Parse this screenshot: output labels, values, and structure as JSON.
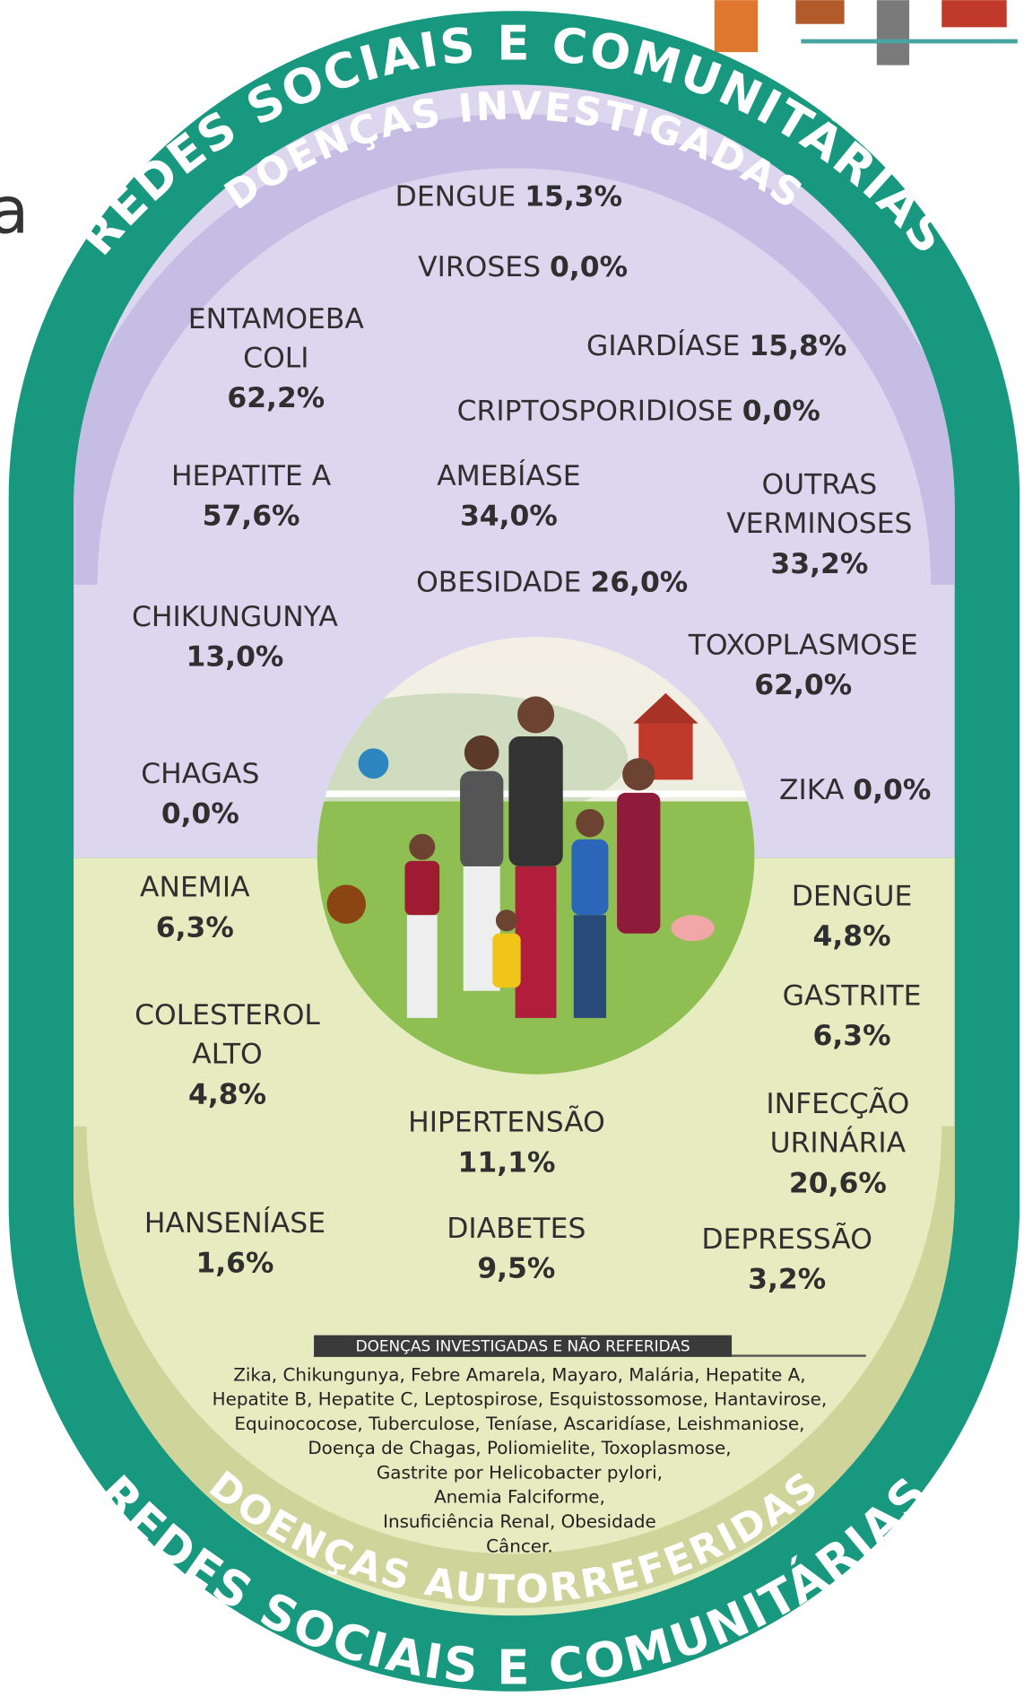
{
  "fragment": "a",
  "top_arc": "REDES SOCIAIS E COMUNITÁRIAS",
  "investigated": {
    "title": "DOENÇAS INVESTIGADAS",
    "items": [
      {
        "lines": [
          "DENGUE"
        ],
        "value": "15,3%"
      },
      {
        "lines": [
          "VIROSES"
        ],
        "value": "0,0%"
      },
      {
        "lines": [
          "ENTAMOEBA",
          "COLI"
        ],
        "value": "62,2%"
      },
      {
        "lines": [
          "GIARDÍASE"
        ],
        "value": "15,8%"
      },
      {
        "lines": [
          "CRIPTOSPORIDIOSE"
        ],
        "value": "0,0%"
      },
      {
        "lines": [
          "HEPATITE A"
        ],
        "value": "57,6%"
      },
      {
        "lines": [
          "AMEBÍASE"
        ],
        "value": "34,0%"
      },
      {
        "lines": [
          "OUTRAS",
          "VERMINOSES"
        ],
        "value": "33,2%"
      },
      {
        "lines": [
          "OBESIDADE"
        ],
        "value": "26,0%"
      },
      {
        "lines": [
          "CHIKUNGUNYA"
        ],
        "value": "13,0%"
      },
      {
        "lines": [
          "TOXOPLASMOSE"
        ],
        "value": "62,0%"
      },
      {
        "lines": [
          "CHAGAS"
        ],
        "value": "0,0%"
      },
      {
        "lines": [
          "ZIKA"
        ],
        "value": "0,0%"
      }
    ]
  },
  "self_reported": {
    "title": "DOENÇAS AUTORREFERIDAS",
    "items": [
      {
        "lines": [
          "ANEMIA"
        ],
        "value": "6,3%"
      },
      {
        "lines": [
          "DENGUE"
        ],
        "value": "4,8%"
      },
      {
        "lines": [
          "GASTRITE"
        ],
        "value": "6,3%"
      },
      {
        "lines": [
          "COLESTEROL",
          "ALTO"
        ],
        "value": "4,8%"
      },
      {
        "lines": [
          "HIPERTENSÃO"
        ],
        "value": "11,1%"
      },
      {
        "lines": [
          "INFECÇÃO",
          "URINÁRIA"
        ],
        "value": "20,6%"
      },
      {
        "lines": [
          "HANSENÍASE"
        ],
        "value": "1,6%"
      },
      {
        "lines": [
          "DIABETES"
        ],
        "value": "9,5%"
      },
      {
        "lines": [
          "DEPRESSÃO"
        ],
        "value": "3,2%"
      }
    ]
  },
  "not_reported": {
    "title": "DOENÇAS INVESTIGADAS E NÃO REFERIDAS",
    "lines": [
      "Zika, Chikungunya, Febre Amarela, Mayaro, Malária, Hepatite A,",
      "Hepatite B, Hepatite C, Leptospirose, Esquistossomose, Hantavirose,",
      "Equinococose, Tuberculose, Teníase, Ascaridíase, Leishmaniose,",
      "Doença de Chagas, Poliomielite, Toxoplasmose,",
      "Gastrite por Helicobacter pylori,",
      "Anemia Falciforme,",
      "Insuficiência Renal, Obesidade",
      "Câncer."
    ]
  },
  "bottom_arc": "REDES SOCIAIS E COMUNITÁRIAS"
}
